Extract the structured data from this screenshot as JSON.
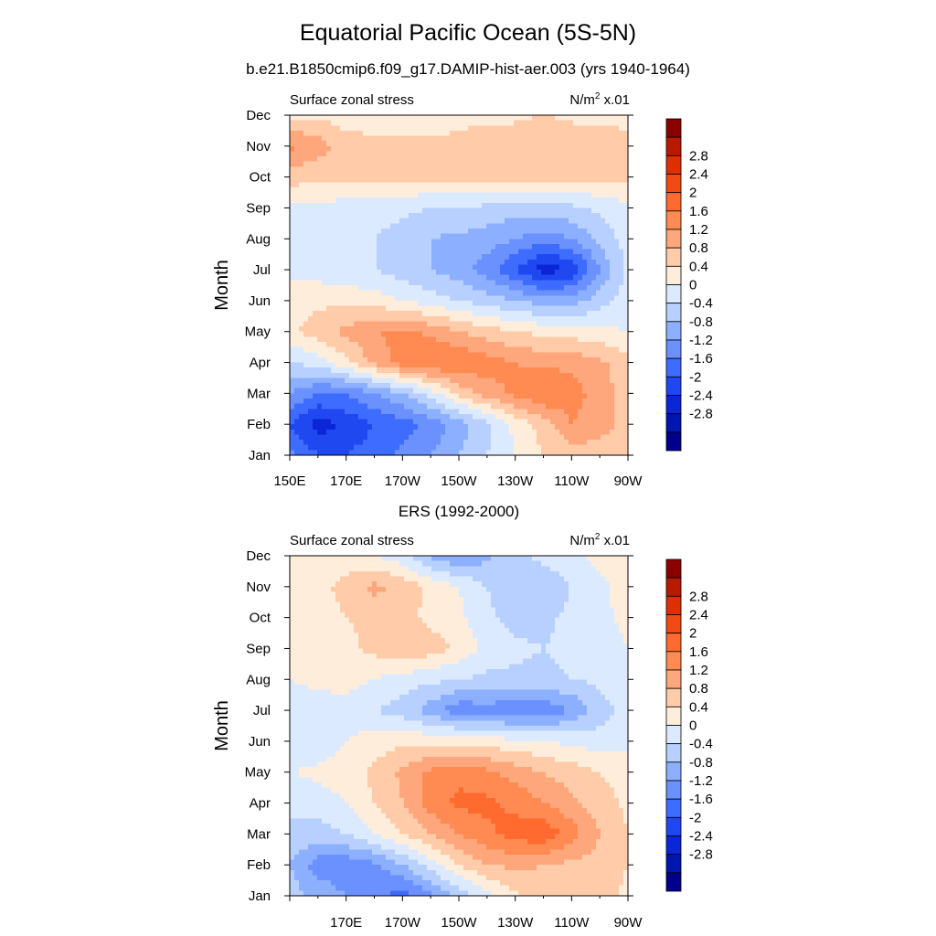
{
  "title": "Equatorial Pacific Ocean (5S-5N)",
  "subtitle": "b.e21.B1850cmip6.f09_g17.DAMIP-hist-aer.003 (yrs 1940-1964)",
  "colorbar": {
    "labels": [
      "2.8",
      "2.4",
      "2",
      "1.6",
      "1.2",
      "0.8",
      "0.4",
      "0",
      "-0.4",
      "-0.8",
      "-1.2",
      "-1.6",
      "-2",
      "-2.4",
      "-2.8"
    ],
    "colors_top_to_bottom": [
      "#8c0000",
      "#b81a00",
      "#dc3000",
      "#f24a14",
      "#ff6a2e",
      "#ff8a52",
      "#ffa77c",
      "#ffcba8",
      "#ffeddc",
      "#dceaff",
      "#b8d0ff",
      "#8cb0ff",
      "#6a91ff",
      "#3e6cff",
      "#1f48f0",
      "#0a26d6",
      "#0016b0",
      "#00008c"
    ]
  },
  "chart_data": [
    {
      "type": "heatmap",
      "title": "",
      "left_label": "Surface zonal stress",
      "units_label": "N/m",
      "units_exponent": "2",
      "units_scale": " x.01",
      "ylabel": "Month",
      "xlabel": "",
      "x_tick_labels": [
        "150E",
        "170E",
        "170W",
        "150W",
        "130W",
        "110W",
        "90W"
      ],
      "y_tick_labels": [
        "Jan",
        "Feb",
        "Mar",
        "Apr",
        "May",
        "Jun",
        "Jul",
        "Aug",
        "Sep",
        "Oct",
        "Nov",
        "Dec"
      ],
      "x": [
        150,
        160,
        170,
        180,
        190,
        200,
        210,
        220,
        230,
        240,
        250,
        260,
        270
      ],
      "y": [
        1,
        2,
        3,
        4,
        5,
        6,
        7,
        8,
        9,
        10,
        11,
        12
      ],
      "z": [
        [
          -1.5,
          -2.0,
          -2.0,
          -1.8,
          -1.5,
          -1.2,
          -0.8,
          -0.4,
          0.0,
          0.4,
          0.6,
          0.6,
          0.4
        ],
        [
          -2.0,
          -2.6,
          -2.3,
          -2.0,
          -1.8,
          -1.5,
          -1.0,
          -0.5,
          0.1,
          0.6,
          1.2,
          1.0,
          0.6
        ],
        [
          -1.2,
          -1.6,
          -1.6,
          -1.2,
          -0.8,
          -0.2,
          0.5,
          1.0,
          1.3,
          1.6,
          1.4,
          1.0,
          0.6
        ],
        [
          -0.4,
          -0.2,
          0.3,
          0.9,
          1.4,
          1.6,
          1.6,
          1.4,
          1.2,
          1.1,
          1.1,
          0.9,
          0.5
        ],
        [
          0.3,
          0.6,
          0.9,
          1.2,
          1.3,
          1.1,
          0.8,
          0.6,
          0.4,
          0.3,
          0.2,
          0.1,
          0.0
        ],
        [
          0.2,
          0.3,
          0.3,
          0.2,
          0.0,
          -0.2,
          -0.4,
          -0.6,
          -0.8,
          -1.0,
          -1.0,
          -0.6,
          -0.2
        ],
        [
          -0.1,
          -0.2,
          -0.3,
          -0.4,
          -0.6,
          -0.8,
          -1.0,
          -1.4,
          -2.0,
          -2.6,
          -2.4,
          -1.2,
          -0.3
        ],
        [
          -0.2,
          -0.3,
          -0.3,
          -0.4,
          -0.6,
          -0.8,
          -0.9,
          -1.0,
          -1.2,
          -1.4,
          -1.2,
          -0.7,
          -0.2
        ],
        [
          -0.1,
          -0.1,
          -0.2,
          -0.2,
          -0.3,
          -0.4,
          -0.4,
          -0.5,
          -0.6,
          -0.6,
          -0.5,
          -0.3,
          -0.1
        ],
        [
          0.6,
          0.5,
          0.5,
          0.5,
          0.5,
          0.5,
          0.5,
          0.5,
          0.5,
          0.5,
          0.5,
          0.5,
          0.5
        ],
        [
          1.3,
          1.0,
          0.6,
          0.5,
          0.5,
          0.5,
          0.5,
          0.6,
          0.7,
          0.8,
          0.7,
          0.6,
          0.5
        ],
        [
          0.3,
          0.3,
          0.2,
          0.2,
          0.2,
          0.2,
          0.3,
          0.3,
          0.3,
          0.4,
          0.3,
          0.3,
          0.3
        ]
      ]
    },
    {
      "type": "heatmap",
      "title": "ERS (1992-2000)",
      "left_label": "Surface zonal stress",
      "units_label": "N/m",
      "units_exponent": "2",
      "units_scale": " x.01",
      "ylabel": "Month",
      "xlabel": "",
      "x_tick_labels": [
        "",
        "170E",
        "170W",
        "150W",
        "130W",
        "110W",
        "90W"
      ],
      "y_tick_labels": [
        "Jan",
        "Feb",
        "Mar",
        "Apr",
        "May",
        "Jun",
        "Jul",
        "Aug",
        "Sep",
        "Oct",
        "Nov",
        "Dec"
      ],
      "x": [
        150,
        160,
        170,
        180,
        190,
        200,
        210,
        220,
        230,
        240,
        250,
        260,
        270
      ],
      "y": [
        1,
        2,
        3,
        4,
        5,
        6,
        7,
        8,
        9,
        10,
        11,
        12
      ],
      "z": [
        [
          -0.6,
          -0.9,
          -1.2,
          -1.5,
          -1.8,
          -1.3,
          -0.7,
          -0.1,
          0.3,
          0.6,
          0.6,
          0.6,
          0.3
        ],
        [
          -0.8,
          -1.4,
          -1.5,
          -1.3,
          -0.8,
          -0.2,
          0.4,
          0.8,
          0.9,
          0.8,
          0.7,
          0.6,
          0.4
        ],
        [
          -0.5,
          -0.6,
          -0.4,
          0.0,
          0.4,
          0.8,
          1.2,
          1.5,
          1.8,
          1.9,
          1.4,
          0.8,
          0.4
        ],
        [
          -0.3,
          -0.2,
          0.0,
          0.4,
          0.8,
          1.4,
          1.7,
          1.7,
          1.5,
          1.2,
          0.9,
          0.6,
          0.3
        ],
        [
          0.0,
          0.1,
          0.2,
          0.5,
          0.9,
          1.3,
          1.5,
          1.3,
          1.0,
          0.8,
          0.6,
          0.4,
          0.2
        ],
        [
          -0.4,
          -0.3,
          0.0,
          0.2,
          0.3,
          0.3,
          0.3,
          0.2,
          0.1,
          0.0,
          -0.1,
          -0.2,
          -0.1
        ],
        [
          -0.2,
          -0.2,
          -0.2,
          -0.4,
          -0.6,
          -1.0,
          -1.5,
          -1.4,
          -1.5,
          -1.5,
          -1.2,
          -0.6,
          -0.2
        ],
        [
          0.0,
          0.1,
          0.2,
          0.0,
          -0.2,
          -0.3,
          -0.4,
          -0.5,
          -0.5,
          -0.5,
          -0.4,
          -0.3,
          -0.1
        ],
        [
          0.1,
          0.2,
          0.3,
          0.5,
          0.8,
          0.6,
          0.3,
          -0.1,
          -0.3,
          -0.4,
          -0.3,
          -0.2,
          0.0
        ],
        [
          0.2,
          0.3,
          0.4,
          0.5,
          0.5,
          0.3,
          0.1,
          -0.3,
          -0.6,
          -0.5,
          -0.3,
          -0.1,
          0.1
        ],
        [
          0.4,
          0.3,
          0.5,
          0.9,
          0.7,
          0.3,
          0.0,
          -0.4,
          -0.7,
          -0.7,
          -0.4,
          -0.1,
          0.2
        ],
        [
          0.3,
          0.3,
          0.2,
          0.0,
          -0.3,
          -0.9,
          -1.2,
          -0.9,
          -0.5,
          -0.3,
          -0.1,
          0.1,
          0.3
        ]
      ]
    }
  ]
}
